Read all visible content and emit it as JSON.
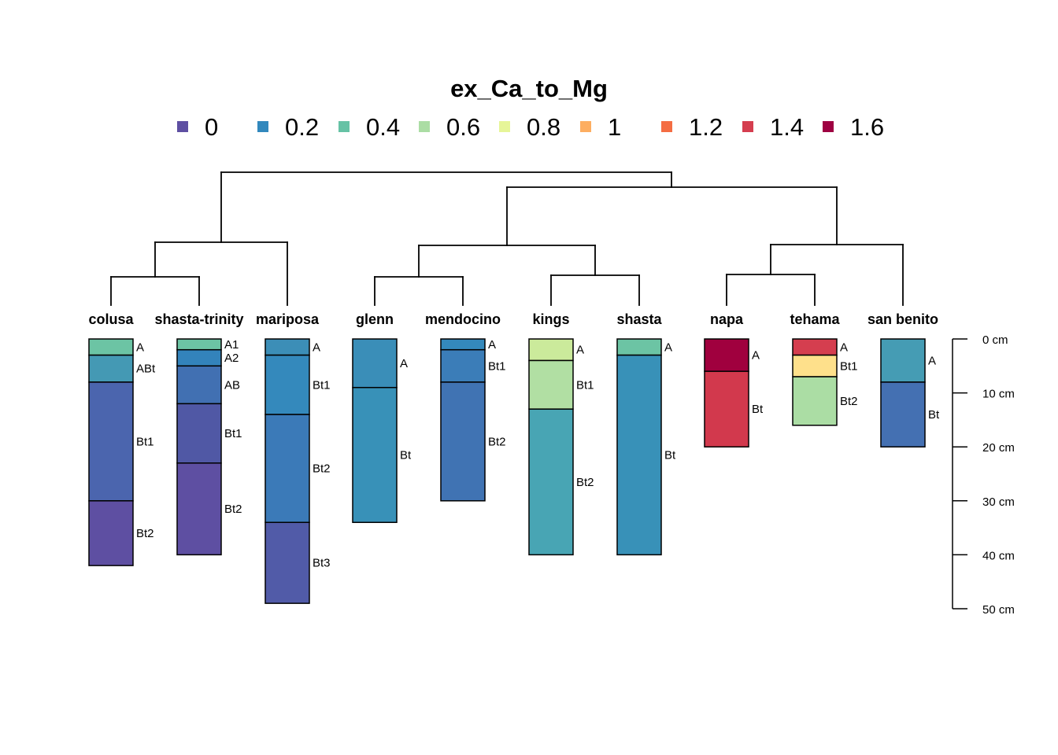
{
  "title": "ex_Ca_to_Mg",
  "legend": [
    {
      "label": "0",
      "color": "#5E4FA2"
    },
    {
      "label": "0.2",
      "color": "#3288BD"
    },
    {
      "label": "0.4",
      "color": "#66C2A5"
    },
    {
      "label": "0.6",
      "color": "#ABDDA4"
    },
    {
      "label": "0.8",
      "color": "#E6F598"
    },
    {
      "label": "1",
      "color": "#FDAE61"
    },
    {
      "label": "1.2",
      "color": "#F46D43"
    },
    {
      "label": "1.4",
      "color": "#D53E4F"
    },
    {
      "label": "1.6",
      "color": "#9E0142"
    }
  ],
  "depth_axis": {
    "unit": "cm",
    "ticks": [
      {
        "value": 0,
        "label": "0 cm"
      },
      {
        "value": 10,
        "label": "10 cm"
      },
      {
        "value": 20,
        "label": "20 cm"
      },
      {
        "value": 30,
        "label": "30 cm"
      },
      {
        "value": 40,
        "label": "40 cm"
      },
      {
        "value": 50,
        "label": "50 cm"
      }
    ]
  },
  "profiles": [
    {
      "name": "colusa",
      "horizons": [
        {
          "name": "A",
          "top": 0,
          "bottom": 3,
          "color": "#6CC4A4"
        },
        {
          "name": "ABt",
          "top": 3,
          "bottom": 8,
          "color": "#4499B4"
        },
        {
          "name": "Bt1",
          "top": 8,
          "bottom": 30,
          "color": "#4B65AE"
        },
        {
          "name": "Bt2",
          "top": 30,
          "bottom": 42,
          "color": "#5E4FA2"
        }
      ]
    },
    {
      "name": "shasta-trinity",
      "horizons": [
        {
          "name": "A1",
          "top": 0,
          "bottom": 2,
          "color": "#6CC4A4"
        },
        {
          "name": "A2",
          "top": 2,
          "bottom": 5,
          "color": "#3383BB"
        },
        {
          "name": "AB",
          "top": 5,
          "bottom": 12,
          "color": "#4170B2"
        },
        {
          "name": "Bt1",
          "top": 12,
          "bottom": 23,
          "color": "#5058A5"
        },
        {
          "name": "Bt2",
          "top": 23,
          "bottom": 40,
          "color": "#5E4FA2"
        }
      ]
    },
    {
      "name": "mariposa",
      "horizons": [
        {
          "name": "A",
          "top": 0,
          "bottom": 3,
          "color": "#3C8EB7"
        },
        {
          "name": "Bt1",
          "top": 3,
          "bottom": 14,
          "color": "#3489BC"
        },
        {
          "name": "Bt2",
          "top": 14,
          "bottom": 34,
          "color": "#3B7AB8"
        },
        {
          "name": "Bt3",
          "top": 34,
          "bottom": 49,
          "color": "#515BA8"
        }
      ]
    },
    {
      "name": "glenn",
      "horizons": [
        {
          "name": "A",
          "top": 0,
          "bottom": 9,
          "color": "#3A8EB8"
        },
        {
          "name": "Bt",
          "top": 9,
          "bottom": 34,
          "color": "#3891B8"
        }
      ]
    },
    {
      "name": "mendocino",
      "horizons": [
        {
          "name": "A",
          "top": 0,
          "bottom": 2,
          "color": "#3489BC"
        },
        {
          "name": "Bt1",
          "top": 2,
          "bottom": 8,
          "color": "#3B7DB8"
        },
        {
          "name": "Bt2",
          "top": 8,
          "bottom": 30,
          "color": "#4073B3"
        }
      ]
    },
    {
      "name": "kings",
      "horizons": [
        {
          "name": "A",
          "top": 0,
          "bottom": 4,
          "color": "#CBEA9B"
        },
        {
          "name": "Bt1",
          "top": 4,
          "bottom": 13,
          "color": "#B1DFA3"
        },
        {
          "name": "Bt2",
          "top": 13,
          "bottom": 40,
          "color": "#48A5B4"
        }
      ]
    },
    {
      "name": "shasta",
      "horizons": [
        {
          "name": "A",
          "top": 0,
          "bottom": 3,
          "color": "#6CC4A4"
        },
        {
          "name": "Bt",
          "top": 3,
          "bottom": 40,
          "color": "#3891B8"
        }
      ]
    },
    {
      "name": "napa",
      "horizons": [
        {
          "name": "A",
          "top": 0,
          "bottom": 6,
          "color": "#A0003E"
        },
        {
          "name": "Bt",
          "top": 6,
          "bottom": 20,
          "color": "#D2394D"
        }
      ]
    },
    {
      "name": "tehama",
      "horizons": [
        {
          "name": "A",
          "top": 0,
          "bottom": 3,
          "color": "#D53E4F"
        },
        {
          "name": "Bt1",
          "top": 3,
          "bottom": 7,
          "color": "#FEE08B"
        },
        {
          "name": "Bt2",
          "top": 7,
          "bottom": 16,
          "color": "#ABDDA4"
        }
      ]
    },
    {
      "name": "san benito",
      "horizons": [
        {
          "name": "A",
          "top": 0,
          "bottom": 8,
          "color": "#459CB4"
        },
        {
          "name": "Bt",
          "top": 8,
          "bottom": 20,
          "color": "#4470B2"
        }
      ]
    }
  ]
}
